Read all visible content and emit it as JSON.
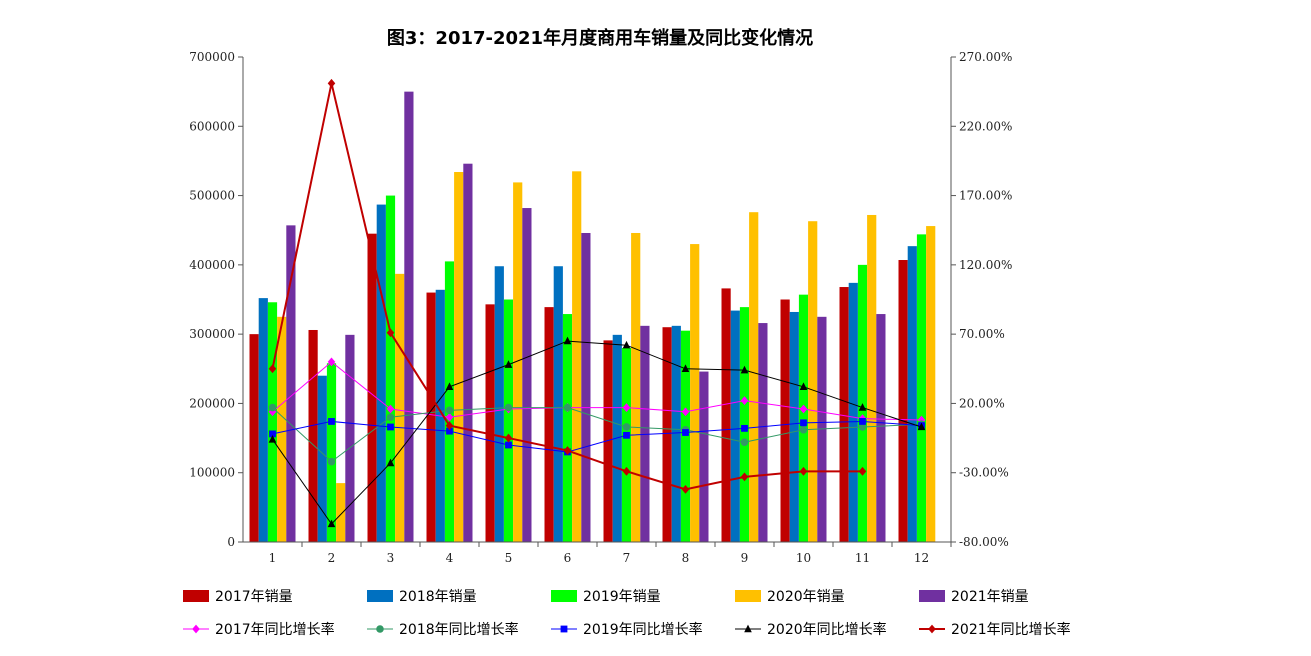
{
  "chart_data": {
    "type": "bar",
    "title": "图3：2017-2021年月度商用车销量及同比变化情况",
    "categories": [
      "1",
      "2",
      "3",
      "4",
      "5",
      "6",
      "7",
      "8",
      "9",
      "10",
      "11",
      "12"
    ],
    "ylim": [
      0,
      700000
    ],
    "y_ticks": [
      "0",
      "100000",
      "200000",
      "300000",
      "400000",
      "500000",
      "600000",
      "700000"
    ],
    "y2lim": [
      -80,
      270
    ],
    "y2_ticks": [
      "-80.00%",
      "-30.00%",
      "20.00%",
      "70.00%",
      "120.00%",
      "170.00%",
      "220.00%",
      "270.00%"
    ],
    "bar_series": [
      {
        "name": "2017年销量",
        "color": "#c00000",
        "values": [
          300000,
          306000,
          445000,
          360000,
          343000,
          339000,
          291000,
          310000,
          366000,
          350000,
          368000,
          407000
        ]
      },
      {
        "name": "2018年销量",
        "color": "#0070c0",
        "values": [
          352000,
          240000,
          487000,
          364000,
          398000,
          398000,
          299000,
          312000,
          334000,
          332000,
          374000,
          427000
        ]
      },
      {
        "name": "2019年销量",
        "color": "#00ff00",
        "values": [
          346000,
          258000,
          500000,
          405000,
          350000,
          329000,
          280000,
          305000,
          339000,
          357000,
          400000,
          444000
        ]
      },
      {
        "name": "2020年销量",
        "color": "#ffc000",
        "values": [
          325000,
          85000,
          387000,
          534000,
          519000,
          535000,
          446000,
          430000,
          476000,
          463000,
          472000,
          456000
        ]
      },
      {
        "name": "2021年销量",
        "color": "#7030a0",
        "values": [
          457000,
          299000,
          650000,
          546000,
          482000,
          446000,
          312000,
          246000,
          316000,
          325000,
          329000,
          0
        ]
      }
    ],
    "line_series": [
      {
        "name": "2017年同比增长率",
        "color": "#ff00ff",
        "marker": "diamond",
        "values": [
          14,
          50,
          16,
          10,
          16,
          17,
          17,
          14,
          22,
          16,
          9,
          8
        ]
      },
      {
        "name": "2018年同比增长率",
        "color": "#339966",
        "marker": "circle",
        "values": [
          17,
          -22,
          10,
          15,
          17,
          17,
          3,
          1,
          -8,
          1,
          3,
          5
        ]
      },
      {
        "name": "2019年同比增长率",
        "color": "#0000ff",
        "marker": "square",
        "values": [
          -2,
          7,
          3,
          0,
          -10,
          -15,
          -3,
          -1,
          2,
          6,
          7,
          4
        ]
      },
      {
        "name": "2020年同比增长率",
        "color": "#000000",
        "marker": "triangle",
        "values": [
          -6,
          -67,
          -23,
          32,
          48,
          65,
          62,
          45,
          44,
          32,
          17,
          3
        ]
      },
      {
        "name": "2021年同比增长率",
        "color": "#c00000",
        "marker": "diamond",
        "values": [
          45,
          251,
          71,
          4,
          -5,
          -14,
          -29,
          -42,
          -33,
          -29,
          -29,
          null
        ]
      }
    ],
    "grid": false,
    "legend_position": "bottom"
  }
}
